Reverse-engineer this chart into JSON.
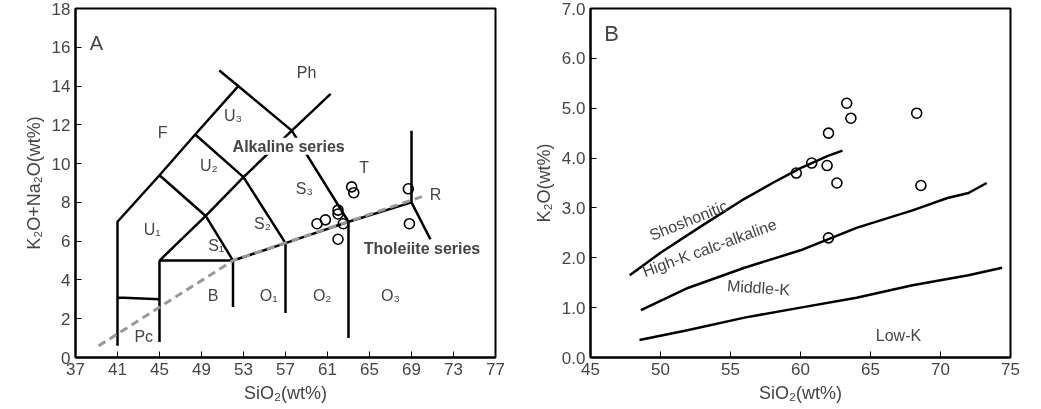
{
  "chart_data": [
    {
      "type": "scatter",
      "xlabel": "SiO₂(wt%)",
      "ylabel": "K₂O+Na₂O(wt%)",
      "xlim": [
        37,
        77
      ],
      "ylim": [
        0,
        18
      ],
      "xticks": [
        37,
        41,
        45,
        49,
        53,
        57,
        61,
        65,
        69,
        73,
        77
      ],
      "yticks": [
        0,
        2,
        4,
        6,
        8,
        10,
        12,
        14,
        16,
        18
      ],
      "series": [
        {
          "type": "line",
          "color": "#000000",
          "x": [
            41,
            41,
            45,
            48.4,
            52.5,
            null,
            50.7,
            52.5,
            57.6,
            63,
            null,
            57.6,
            61.3,
            null,
            48.4,
            53,
            57,
            null,
            45,
            49.4,
            52,
            null,
            45,
            49.4,
            53,
            57.6,
            null,
            45,
            52,
            57,
            63,
            69,
            69,
            null,
            69,
            70.8,
            null,
            41,
            45,
            null,
            45,
            45,
            null,
            52,
            52,
            null,
            57,
            57,
            null,
            63,
            63
          ],
          "values": [
            0.6,
            7,
            9.4,
            11.5,
            14,
            null,
            14.8,
            14,
            11.7,
            7,
            null,
            11.7,
            13.6,
            null,
            11.5,
            9.3,
            5.9,
            null,
            9.4,
            7.3,
            5,
            null,
            5,
            7.3,
            9.3,
            11.7,
            null,
            5,
            5,
            5.9,
            7,
            8,
            11.7,
            null,
            8,
            6.1,
            null,
            3.1,
            3,
            null,
            0.8,
            5,
            null,
            2.6,
            5,
            null,
            2.3,
            5.9,
            null,
            1,
            7
          ]
        },
        {
          "type": "line",
          "color": "#999999",
          "line_style": "dashed",
          "x": [
            39.2,
            52,
            70
          ],
          "values": [
            0.6,
            5,
            8.3
          ]
        },
        {
          "marker": "circle",
          "color": "#000000",
          "x": [
            60.0,
            60.8,
            62.0,
            62.0,
            62.5,
            62.0,
            63.3,
            63.5,
            68.7,
            68.8
          ],
          "values": [
            6.9,
            7.1,
            7.6,
            7.4,
            6.9,
            6.1,
            8.8,
            8.5,
            8.7,
            6.9
          ]
        }
      ],
      "annotations": [
        "A",
        "Ph",
        "F",
        "U₃",
        "U₂",
        "U₁",
        "S₁",
        "S₂",
        "S₃",
        "T",
        "R",
        "B",
        "O₁",
        "O₂",
        "O₃",
        "Pc",
        "Alkaline series",
        "Tholeiite series"
      ]
    },
    {
      "type": "scatter",
      "xlabel": "SiO₂(wt%)",
      "ylabel": "K₂O(wt%)",
      "xlim": [
        45,
        75
      ],
      "ylim": [
        0,
        7
      ],
      "xticks": [
        45,
        50,
        55,
        60,
        65,
        70,
        75
      ],
      "yticks": [
        {
          "value": 0,
          "label": "0.0"
        },
        {
          "value": 1,
          "label": "1.0"
        },
        {
          "value": 2,
          "label": "2.0"
        },
        {
          "value": 3,
          "label": "3.0"
        },
        {
          "value": 4,
          "label": "4.0"
        },
        {
          "value": 5,
          "label": "5.0"
        },
        {
          "value": 6,
          "label": "6.0"
        },
        {
          "value": 7,
          "label": "7.0"
        }
      ],
      "series": [
        {
          "type": "line",
          "color": "#000000",
          "x": [
            47.8,
            50,
            53,
            55.8,
            58,
            60,
            62,
            63
          ],
          "values": [
            1.65,
            2.1,
            2.65,
            3.15,
            3.5,
            3.8,
            4.05,
            4.15
          ]
        },
        {
          "type": "line",
          "color": "#000000",
          "x": [
            48.6,
            52,
            56,
            60,
            64,
            68,
            70.5,
            72,
            73.3
          ],
          "values": [
            0.95,
            1.4,
            1.8,
            2.15,
            2.6,
            2.95,
            3.2,
            3.3,
            3.5
          ]
        },
        {
          "type": "line",
          "color": "#000000",
          "x": [
            48.5,
            52,
            56,
            60,
            64,
            68,
            72,
            74.4
          ],
          "values": [
            0.35,
            0.55,
            0.8,
            1.0,
            1.2,
            1.45,
            1.65,
            1.8
          ]
        },
        {
          "marker": "circle",
          "color": "#000000",
          "x": [
            59.7,
            60.8,
            62.0,
            61.9,
            62.6,
            62.0,
            63.3,
            63.6,
            68.3,
            68.6
          ],
          "values": [
            3.7,
            3.9,
            4.5,
            3.85,
            3.5,
            2.4,
            5.1,
            4.8,
            4.9,
            3.45
          ]
        }
      ],
      "annotations": [
        "B",
        "Shoshonitic",
        "High-K calc-alkaline",
        "Middle-K",
        "Low-K"
      ]
    }
  ]
}
